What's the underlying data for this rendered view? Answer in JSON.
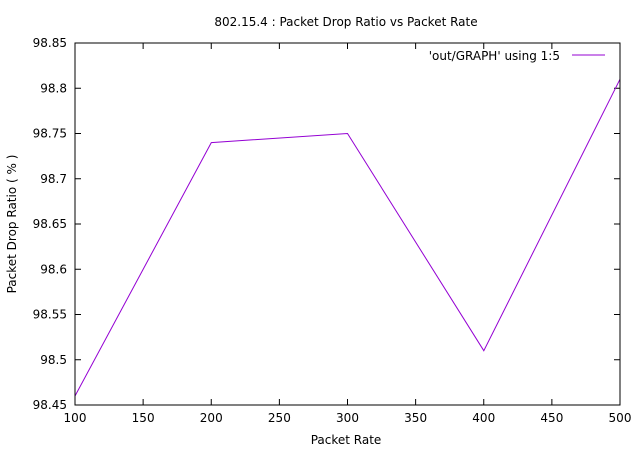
{
  "chart_data": {
    "type": "line",
    "title": "802.15.4 : Packet Drop Ratio vs Packet Rate",
    "xlabel": "Packet Rate",
    "ylabel": "Packet Drop Ratio ( % )",
    "xlim": [
      100,
      500
    ],
    "ylim": [
      98.45,
      98.85
    ],
    "xticks": [
      "100",
      "150",
      "200",
      "250",
      "300",
      "350",
      "400",
      "450",
      "500"
    ],
    "yticks": [
      "98.45",
      "98.5",
      "98.55",
      "98.6",
      "98.65",
      "98.7",
      "98.75",
      "98.8",
      "98.85"
    ],
    "legend_position": "top-right",
    "grid": false,
    "series": [
      {
        "name": "'out/GRAPH' using 1:5",
        "color": "#9400d3",
        "x": [
          100,
          200,
          300,
          400,
          500
        ],
        "y": [
          98.46,
          98.74,
          98.75,
          98.51,
          98.81
        ]
      }
    ]
  }
}
